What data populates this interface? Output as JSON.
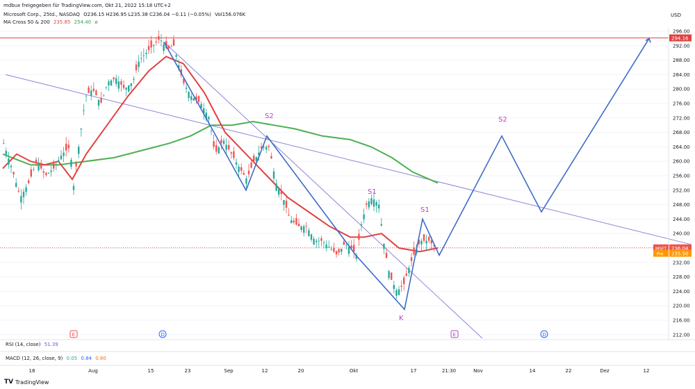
{
  "header": {
    "share_line": "mdbux freigegeben für TradingView.com, Okt 21, 2022 15:18 UTC+2",
    "symbol": "Microsoft Corp., 25td., NASDAQ",
    "ohlc": "O236.15 H236.95 L235.38 C236.04 −0.11 (−0.05%)",
    "volume": "Vol156.076K",
    "ma_name": "MA Cross 50 & 200",
    "ma_fast": "235.85",
    "ma_slow": "254.40",
    "ma_icon": "ø"
  },
  "currency": "USD",
  "price_axis": {
    "ticks": [
      "296.00",
      "292.00",
      "288.00",
      "284.00",
      "280.00",
      "276.00",
      "272.00",
      "268.00",
      "264.00",
      "260.00",
      "256.00",
      "252.00",
      "248.00",
      "244.00",
      "240.00",
      "236.00",
      "232.00",
      "228.00",
      "224.00",
      "220.00",
      "216.00",
      "212.00"
    ],
    "target_label": "294.16",
    "last_symbol": "MSFT",
    "last_price": "236.04",
    "pre_label": "Pre",
    "pre_price": "235.50"
  },
  "time_axis": [
    "18",
    "Aug",
    "15",
    "23",
    "Sep",
    "12",
    "20",
    "Okt",
    "17",
    "21:30",
    "Nov",
    "14",
    "22",
    "Dez",
    "12"
  ],
  "pattern_labels": {
    "s2_left": "S2",
    "s1_left": "S1",
    "k": "K",
    "s1_right": "S1",
    "s2_right": "S2"
  },
  "event_markers": {
    "earnings_1": "E",
    "dividend_1": "D",
    "earnings_2": "E",
    "dividend_2": "D"
  },
  "rsi": {
    "name": "RSI (14, close)",
    "value": "51.39"
  },
  "macd": {
    "name": "MACD (12, 26, close, 9)",
    "v1": "0.05",
    "v2": "0.84",
    "v3": "0.80"
  },
  "footer": {
    "brand": "TradingView"
  },
  "colors": {
    "bull": "#26a69a",
    "bear": "#ef5350",
    "ma_fast": "#e0413f",
    "ma_slow": "#4caf50",
    "projection": "#3d6bc7",
    "trend": "#8a86d6",
    "label": "#c040c0",
    "target": "#e0413f"
  },
  "chart_data": {
    "type": "candlestick",
    "symbol": "MSFT",
    "ylim": [
      211,
      297
    ],
    "price_series": {
      "name": "MSFT",
      "points": [
        [
          0,
          265
        ],
        [
          12,
          258
        ],
        [
          24,
          250
        ],
        [
          36,
          254
        ],
        [
          48,
          260
        ],
        [
          60,
          256
        ],
        [
          72,
          258
        ],
        [
          84,
          262
        ],
        [
          96,
          264
        ],
        [
          100,
          252
        ],
        [
          108,
          264
        ],
        [
          118,
          278
        ],
        [
          128,
          280
        ],
        [
          140,
          276
        ],
        [
          150,
          282
        ],
        [
          162,
          283
        ],
        [
          174,
          280
        ],
        [
          186,
          282
        ],
        [
          195,
          288
        ],
        [
          205,
          290
        ],
        [
          215,
          292
        ],
        [
          225,
          294
        ],
        [
          235,
          291
        ],
        [
          245,
          292
        ],
        [
          258,
          282
        ],
        [
          270,
          278
        ],
        [
          284,
          276
        ],
        [
          296,
          272
        ],
        [
          304,
          262
        ],
        [
          316,
          266
        ],
        [
          328,
          262
        ],
        [
          340,
          258
        ],
        [
          350,
          255
        ],
        [
          360,
          260
        ],
        [
          372,
          264
        ],
        [
          382,
          264
        ],
        [
          392,
          254
        ],
        [
          402,
          250
        ],
        [
          412,
          244
        ],
        [
          424,
          242
        ],
        [
          436,
          242
        ],
        [
          448,
          238
        ],
        [
          458,
          238
        ],
        [
          470,
          236
        ],
        [
          480,
          234
        ],
        [
          490,
          237
        ],
        [
          500,
          236
        ],
        [
          508,
          234
        ],
        [
          514,
          242
        ],
        [
          522,
          248
        ],
        [
          530,
          250
        ],
        [
          540,
          248
        ],
        [
          548,
          236
        ],
        [
          556,
          228
        ],
        [
          566,
          224
        ],
        [
          576,
          226
        ],
        [
          584,
          231
        ],
        [
          592,
          235
        ],
        [
          600,
          238
        ],
        [
          612,
          238
        ],
        [
          622,
          236
        ]
      ]
    },
    "ma_fast": {
      "name": "MA 50",
      "points": [
        [
          0,
          258
        ],
        [
          20,
          262
        ],
        [
          40,
          260
        ],
        [
          60,
          259
        ],
        [
          80,
          260
        ],
        [
          100,
          255
        ],
        [
          120,
          262
        ],
        [
          150,
          270
        ],
        [
          180,
          278
        ],
        [
          210,
          285
        ],
        [
          235,
          289
        ],
        [
          260,
          287
        ],
        [
          290,
          279
        ],
        [
          320,
          268
        ],
        [
          350,
          262
        ],
        [
          380,
          256
        ],
        [
          410,
          250
        ],
        [
          440,
          246
        ],
        [
          470,
          242
        ],
        [
          500,
          239
        ],
        [
          520,
          239
        ],
        [
          545,
          240
        ],
        [
          570,
          236
        ],
        [
          600,
          235
        ],
        [
          626,
          236
        ]
      ]
    },
    "ma_slow": {
      "name": "MA 200",
      "points": [
        [
          0,
          262
        ],
        [
          40,
          259
        ],
        [
          80,
          259
        ],
        [
          120,
          260
        ],
        [
          160,
          261
        ],
        [
          200,
          263
        ],
        [
          240,
          265
        ],
        [
          270,
          267
        ],
        [
          300,
          270
        ],
        [
          330,
          270
        ],
        [
          360,
          271
        ],
        [
          390,
          270
        ],
        [
          420,
          269
        ],
        [
          460,
          267
        ],
        [
          500,
          266
        ],
        [
          530,
          264
        ],
        [
          560,
          261
        ],
        [
          590,
          257
        ],
        [
          626,
          254
        ]
      ]
    },
    "projection": [
      [
        232,
        293
      ],
      [
        350,
        252
      ],
      [
        380,
        267
      ],
      [
        508,
        234
      ],
      [
        578,
        219
      ],
      [
        604,
        244
      ],
      [
        628,
        234
      ],
      [
        718,
        267
      ],
      [
        775,
        246
      ],
      [
        930,
        294
      ]
    ],
    "trend_lines": [
      [
        [
          4,
          284
        ],
        [
          990,
          237
        ]
      ],
      [
        [
          232,
          293
        ],
        [
          690,
          211
        ]
      ]
    ],
    "target_price": 294.16,
    "last_price": 236.04,
    "pre_price": 235.5,
    "labels": [
      {
        "text": "S2",
        "x": 382,
        "y": 272
      },
      {
        "text": "S1",
        "x": 530,
        "y": 251
      },
      {
        "text": "K",
        "x": 575,
        "y": 216
      },
      {
        "text": "S1",
        "x": 606,
        "y": 246
      },
      {
        "text": "S2",
        "x": 718,
        "y": 271
      }
    ]
  }
}
